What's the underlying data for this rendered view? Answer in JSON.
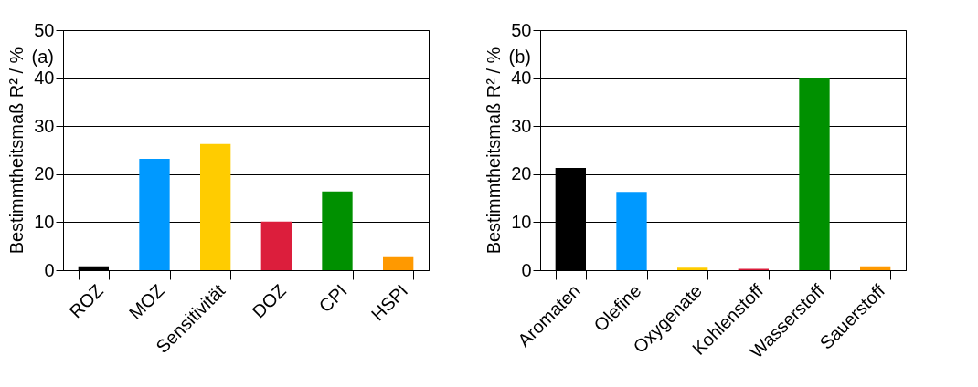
{
  "chart_data": [
    {
      "type": "bar",
      "categories": [
        "ROZ",
        "MOZ",
        "Sensitivität",
        "DOZ",
        "CPI",
        "HSPI"
      ],
      "values": [
        0.8,
        23.2,
        26.3,
        10.1,
        16.4,
        2.7
      ],
      "colors": [
        "#000000",
        "#0099ff",
        "#ffcc00",
        "#dc1e3c",
        "#009000",
        "#ff9900"
      ],
      "ylabel": "Bestimmtheitsmaß R² / %",
      "ylim": [
        0,
        50
      ],
      "yticks": [
        0,
        10,
        20,
        30,
        40,
        50
      ],
      "grid": "y",
      "annotations": [
        "(a)"
      ]
    },
    {
      "type": "bar",
      "categories": [
        "Aromaten",
        "Olefine",
        "Oxygenate",
        "Kohlenstoff",
        "Wasserstoff",
        "Sauerstoff"
      ],
      "values": [
        21.3,
        16.3,
        0.5,
        0.3,
        40,
        0.8
      ],
      "colors": [
        "#000000",
        "#0099ff",
        "#ffcc00",
        "#dc1e3c",
        "#009000",
        "#ff9900"
      ],
      "ylabel": "Bestimmtheitsmaß R² / %",
      "ylim": [
        0,
        50
      ],
      "yticks": [
        0,
        10,
        20,
        30,
        40,
        50
      ],
      "grid": "y",
      "annotations": [
        "(b)"
      ]
    }
  ]
}
